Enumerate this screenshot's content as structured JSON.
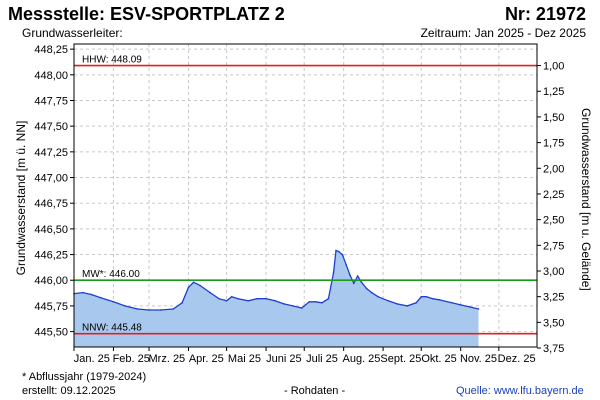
{
  "header": {
    "title": "Messstelle: ESV-SPORTPLATZ 2",
    "number": "Nr: 21972",
    "aquifer_label": "Grundwasserleiter:",
    "period": "Zeitraum: Jan 2025 - Dez 2025"
  },
  "footer": {
    "note": "* Abflussjahr (1979-2024)",
    "created": "erstellt:  09.12.2025",
    "rawdata": "- Rohdaten -",
    "source": "Quelle: www.lfu.bayern.de"
  },
  "colors": {
    "hhw": "#e02020",
    "nnw": "#e02020",
    "mw": "#1a9a1a",
    "line": "#1f3fd0",
    "fill": "#a9c8ee",
    "grid": "#c8c8c8"
  },
  "chart_data": {
    "type": "area",
    "ylabel": "Grundwasserstand [m ü. NN]",
    "ylabel_right": "Grundwasserstand [m u. Gelände]",
    "ylim": [
      445.35,
      448.3
    ],
    "y_ticks": [
      "448,25",
      "448,00",
      "447,75",
      "447,50",
      "447,25",
      "447,00",
      "446,75",
      "446,50",
      "446,25",
      "446,00",
      "445,75",
      "445,50"
    ],
    "y_tick_values": [
      448.25,
      448.0,
      447.75,
      447.5,
      447.25,
      447.0,
      446.75,
      446.5,
      446.25,
      446.0,
      445.75,
      445.5
    ],
    "right_ticks": [
      "1,00",
      "1,25",
      "1,50",
      "1,75",
      "2,00",
      "2,25",
      "2,50",
      "2,75",
      "3,00",
      "3,25",
      "3,50",
      "3,75"
    ],
    "right_tick_values": [
      1.0,
      1.25,
      1.5,
      1.75,
      2.0,
      2.25,
      2.5,
      2.75,
      3.0,
      3.25,
      3.5,
      3.75
    ],
    "ground_level": 449.09,
    "x_range": [
      "2025-01-01",
      "2025-12-31"
    ],
    "months": [
      "Jan. 25",
      "Feb. 25",
      "Mrz. 25",
      "Apr. 25",
      "Mai 25",
      "Juni 25",
      "Juli 25",
      "Aug. 25",
      "Sept. 25",
      "Okt. 25",
      "Nov. 25",
      "Dez. 25"
    ],
    "reference_lines": [
      {
        "label": "HHW: 448.09",
        "value": 448.09,
        "key": "hhw"
      },
      {
        "label": "MW*: 446.00",
        "value": 446.0,
        "key": "mw"
      },
      {
        "label": "NNW: 445.48",
        "value": 445.48,
        "key": "nnw"
      }
    ],
    "x": [
      "2025-01-01",
      "2025-01-08",
      "2025-01-15",
      "2025-01-22",
      "2025-02-01",
      "2025-02-10",
      "2025-02-20",
      "2025-03-01",
      "2025-03-10",
      "2025-03-20",
      "2025-03-27",
      "2025-04-01",
      "2025-04-05",
      "2025-04-10",
      "2025-04-18",
      "2025-04-25",
      "2025-05-01",
      "2025-05-05",
      "2025-05-10",
      "2025-05-18",
      "2025-05-25",
      "2025-06-01",
      "2025-06-08",
      "2025-06-15",
      "2025-06-22",
      "2025-06-29",
      "2025-07-05",
      "2025-07-10",
      "2025-07-15",
      "2025-07-20",
      "2025-07-24",
      "2025-07-26",
      "2025-07-28",
      "2025-07-31",
      "2025-08-03",
      "2025-08-06",
      "2025-08-09",
      "2025-08-12",
      "2025-08-15",
      "2025-08-19",
      "2025-08-23",
      "2025-08-28",
      "2025-09-05",
      "2025-09-12",
      "2025-09-20",
      "2025-09-27",
      "2025-10-01",
      "2025-10-05",
      "2025-10-10",
      "2025-10-15",
      "2025-10-25",
      "2025-11-01",
      "2025-11-08",
      "2025-11-15"
    ],
    "values": [
      445.87,
      445.88,
      445.86,
      445.83,
      445.79,
      445.75,
      445.72,
      445.71,
      445.71,
      445.72,
      445.78,
      445.93,
      445.98,
      445.95,
      445.88,
      445.82,
      445.8,
      445.84,
      445.82,
      445.8,
      445.82,
      445.82,
      445.8,
      445.77,
      445.75,
      445.73,
      445.79,
      445.79,
      445.78,
      445.82,
      446.07,
      446.29,
      446.28,
      446.25,
      446.15,
      446.05,
      445.97,
      446.04,
      445.98,
      445.92,
      445.88,
      445.84,
      445.8,
      445.77,
      445.75,
      445.78,
      445.84,
      445.84,
      445.82,
      445.81,
      445.78,
      445.76,
      445.74,
      445.72
    ]
  }
}
